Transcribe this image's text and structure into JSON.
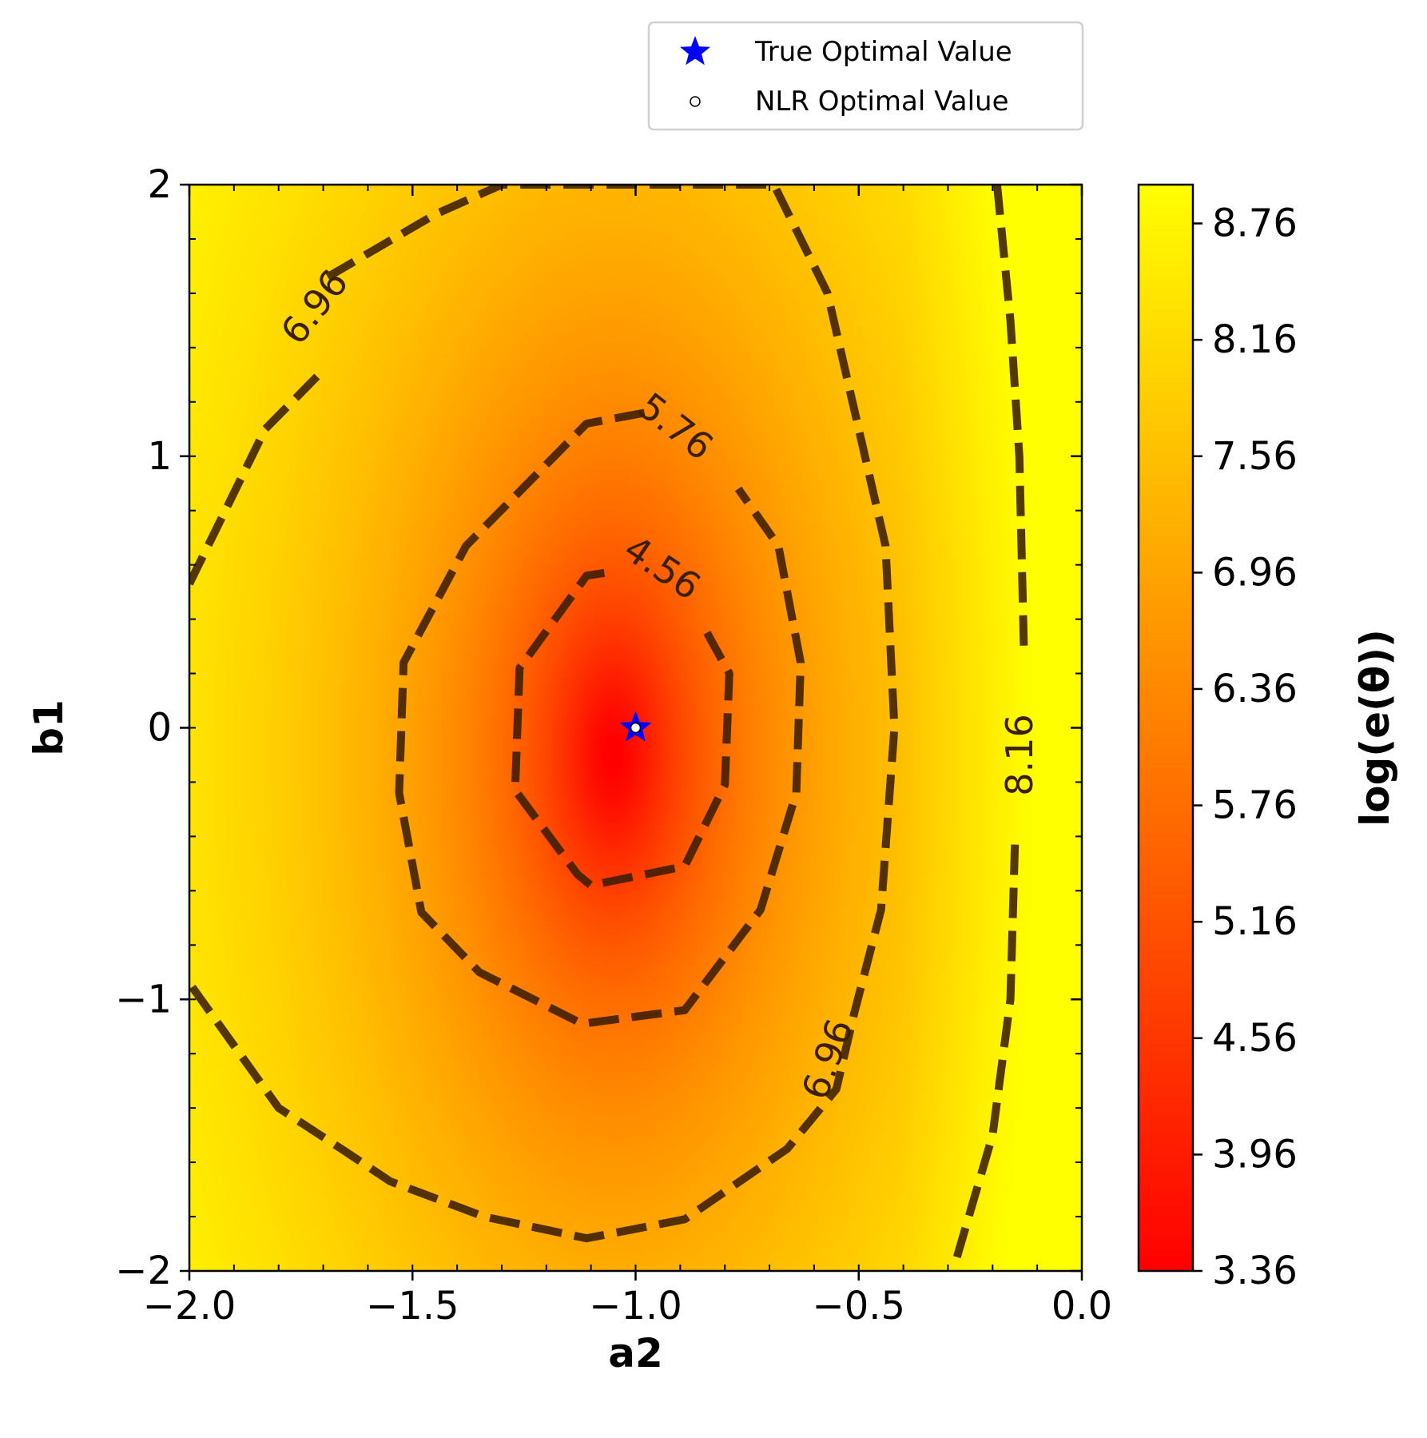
{
  "chart_data": {
    "type": "contour",
    "xlabel": "a2",
    "ylabel": "b1",
    "xlim": [
      -2.0,
      0.0
    ],
    "ylim": [
      -2,
      2
    ],
    "x_ticks": [
      -2.0,
      -1.5,
      -1.0,
      -0.5,
      0.0
    ],
    "x_tick_labels": [
      "−2.0",
      "−1.5",
      "−1.0",
      "−0.5",
      "0.0"
    ],
    "y_ticks": [
      -2,
      -1,
      0,
      1,
      2
    ],
    "y_tick_labels": [
      "−2",
      "−1",
      "0",
      "1",
      "2"
    ],
    "colorbar": {
      "label": "log(e(θ))",
      "min": 3.36,
      "max": 8.96,
      "colormap": "autumn",
      "colors": [
        "#ff0000",
        "#ffff00"
      ],
      "ticks": [
        3.36,
        3.96,
        4.56,
        5.16,
        5.76,
        6.36,
        6.96,
        7.56,
        8.16,
        8.76
      ],
      "tick_labels": [
        "3.36",
        "3.96",
        "4.56",
        "5.16",
        "5.76",
        "6.36",
        "6.96",
        "7.56",
        "8.16",
        "8.76"
      ]
    },
    "contour_levels": [
      {
        "level": "4.56",
        "points": [
          [
            -1.07,
            0.57
          ],
          [
            -1.11,
            0.56
          ],
          [
            -1.26,
            0.22
          ],
          [
            -1.27,
            -0.23
          ],
          [
            -1.13,
            -0.54
          ],
          [
            -1.1,
            -0.58
          ],
          [
            -0.89,
            -0.51
          ],
          [
            -0.8,
            -0.21
          ],
          [
            -0.79,
            0.2
          ],
          [
            -0.85,
            0.38
          ]
        ],
        "labels": [
          {
            "x": -0.94,
            "y": 0.59,
            "angle": 34
          }
        ]
      },
      {
        "level": "5.76",
        "points": [
          [
            -0.98,
            1.16
          ],
          [
            -1.11,
            1.12
          ],
          [
            -1.38,
            0.67
          ],
          [
            -1.52,
            0.24
          ],
          [
            -1.53,
            -0.24
          ],
          [
            -1.48,
            -0.68
          ],
          [
            -1.35,
            -0.9
          ],
          [
            -1.12,
            -1.09
          ],
          [
            -0.89,
            -1.04
          ],
          [
            -0.72,
            -0.67
          ],
          [
            -0.64,
            -0.24
          ],
          [
            -0.63,
            0.24
          ],
          [
            -0.68,
            0.67
          ],
          [
            -0.77,
            0.88
          ]
        ],
        "labels": [
          {
            "x": -0.91,
            "y": 1.11,
            "angle": 38
          }
        ]
      },
      {
        "level": "6.96",
        "points": [
          [
            -1.69,
            1.66
          ],
          [
            -1.45,
            1.89
          ],
          [
            -1.3,
            2.0
          ],
          [
            -0.69,
            2.0
          ],
          [
            -0.57,
            1.6
          ],
          [
            -0.44,
            0.67
          ],
          [
            -0.42,
            0.0
          ],
          [
            -0.45,
            -0.67
          ],
          [
            -0.51,
            -1.05
          ],
          [
            -0.55,
            -1.33
          ],
          [
            -0.66,
            -1.55
          ],
          [
            -0.89,
            -1.81
          ],
          [
            -1.11,
            -1.88
          ],
          [
            -1.34,
            -1.8
          ],
          [
            -1.55,
            -1.67
          ],
          [
            -1.66,
            -1.55
          ],
          [
            -1.8,
            -1.4
          ],
          [
            -2.0,
            -0.94
          ]
        ],
        "extra": [
          [
            -2.0,
            0.53
          ],
          [
            -1.83,
            1.1
          ],
          [
            -1.71,
            1.3
          ]
        ],
        "labels": [
          {
            "x": -1.72,
            "y": 1.55,
            "angle": -52
          },
          {
            "x": -0.57,
            "y": -1.22,
            "angle": -70
          }
        ]
      },
      {
        "level": "8.16",
        "points": [
          [
            -0.19,
            2.0
          ],
          [
            -0.16,
            1.5
          ],
          [
            -0.14,
            1.0
          ],
          [
            -0.13,
            0.3
          ]
        ],
        "extra": [
          [
            -0.15,
            -0.43
          ],
          [
            -0.16,
            -1.0
          ],
          [
            -0.2,
            -1.5
          ],
          [
            -0.28,
            -1.95
          ]
        ],
        "labels": [
          {
            "x": -0.14,
            "y": -0.1,
            "angle": -90
          }
        ]
      }
    ],
    "markers": [
      {
        "name": "True Optimal Value",
        "x": -1.0,
        "y": 0.0,
        "symbol": "star",
        "color": "#0000ff"
      },
      {
        "name": "NLR Optimal Value",
        "x": -1.0,
        "y": 0.0,
        "symbol": "circle",
        "color": "#ffffff"
      }
    ],
    "legend": {
      "placement": "top-right, above plot"
    },
    "minimum": {
      "x": -1.05,
      "y": -0.1
    }
  }
}
